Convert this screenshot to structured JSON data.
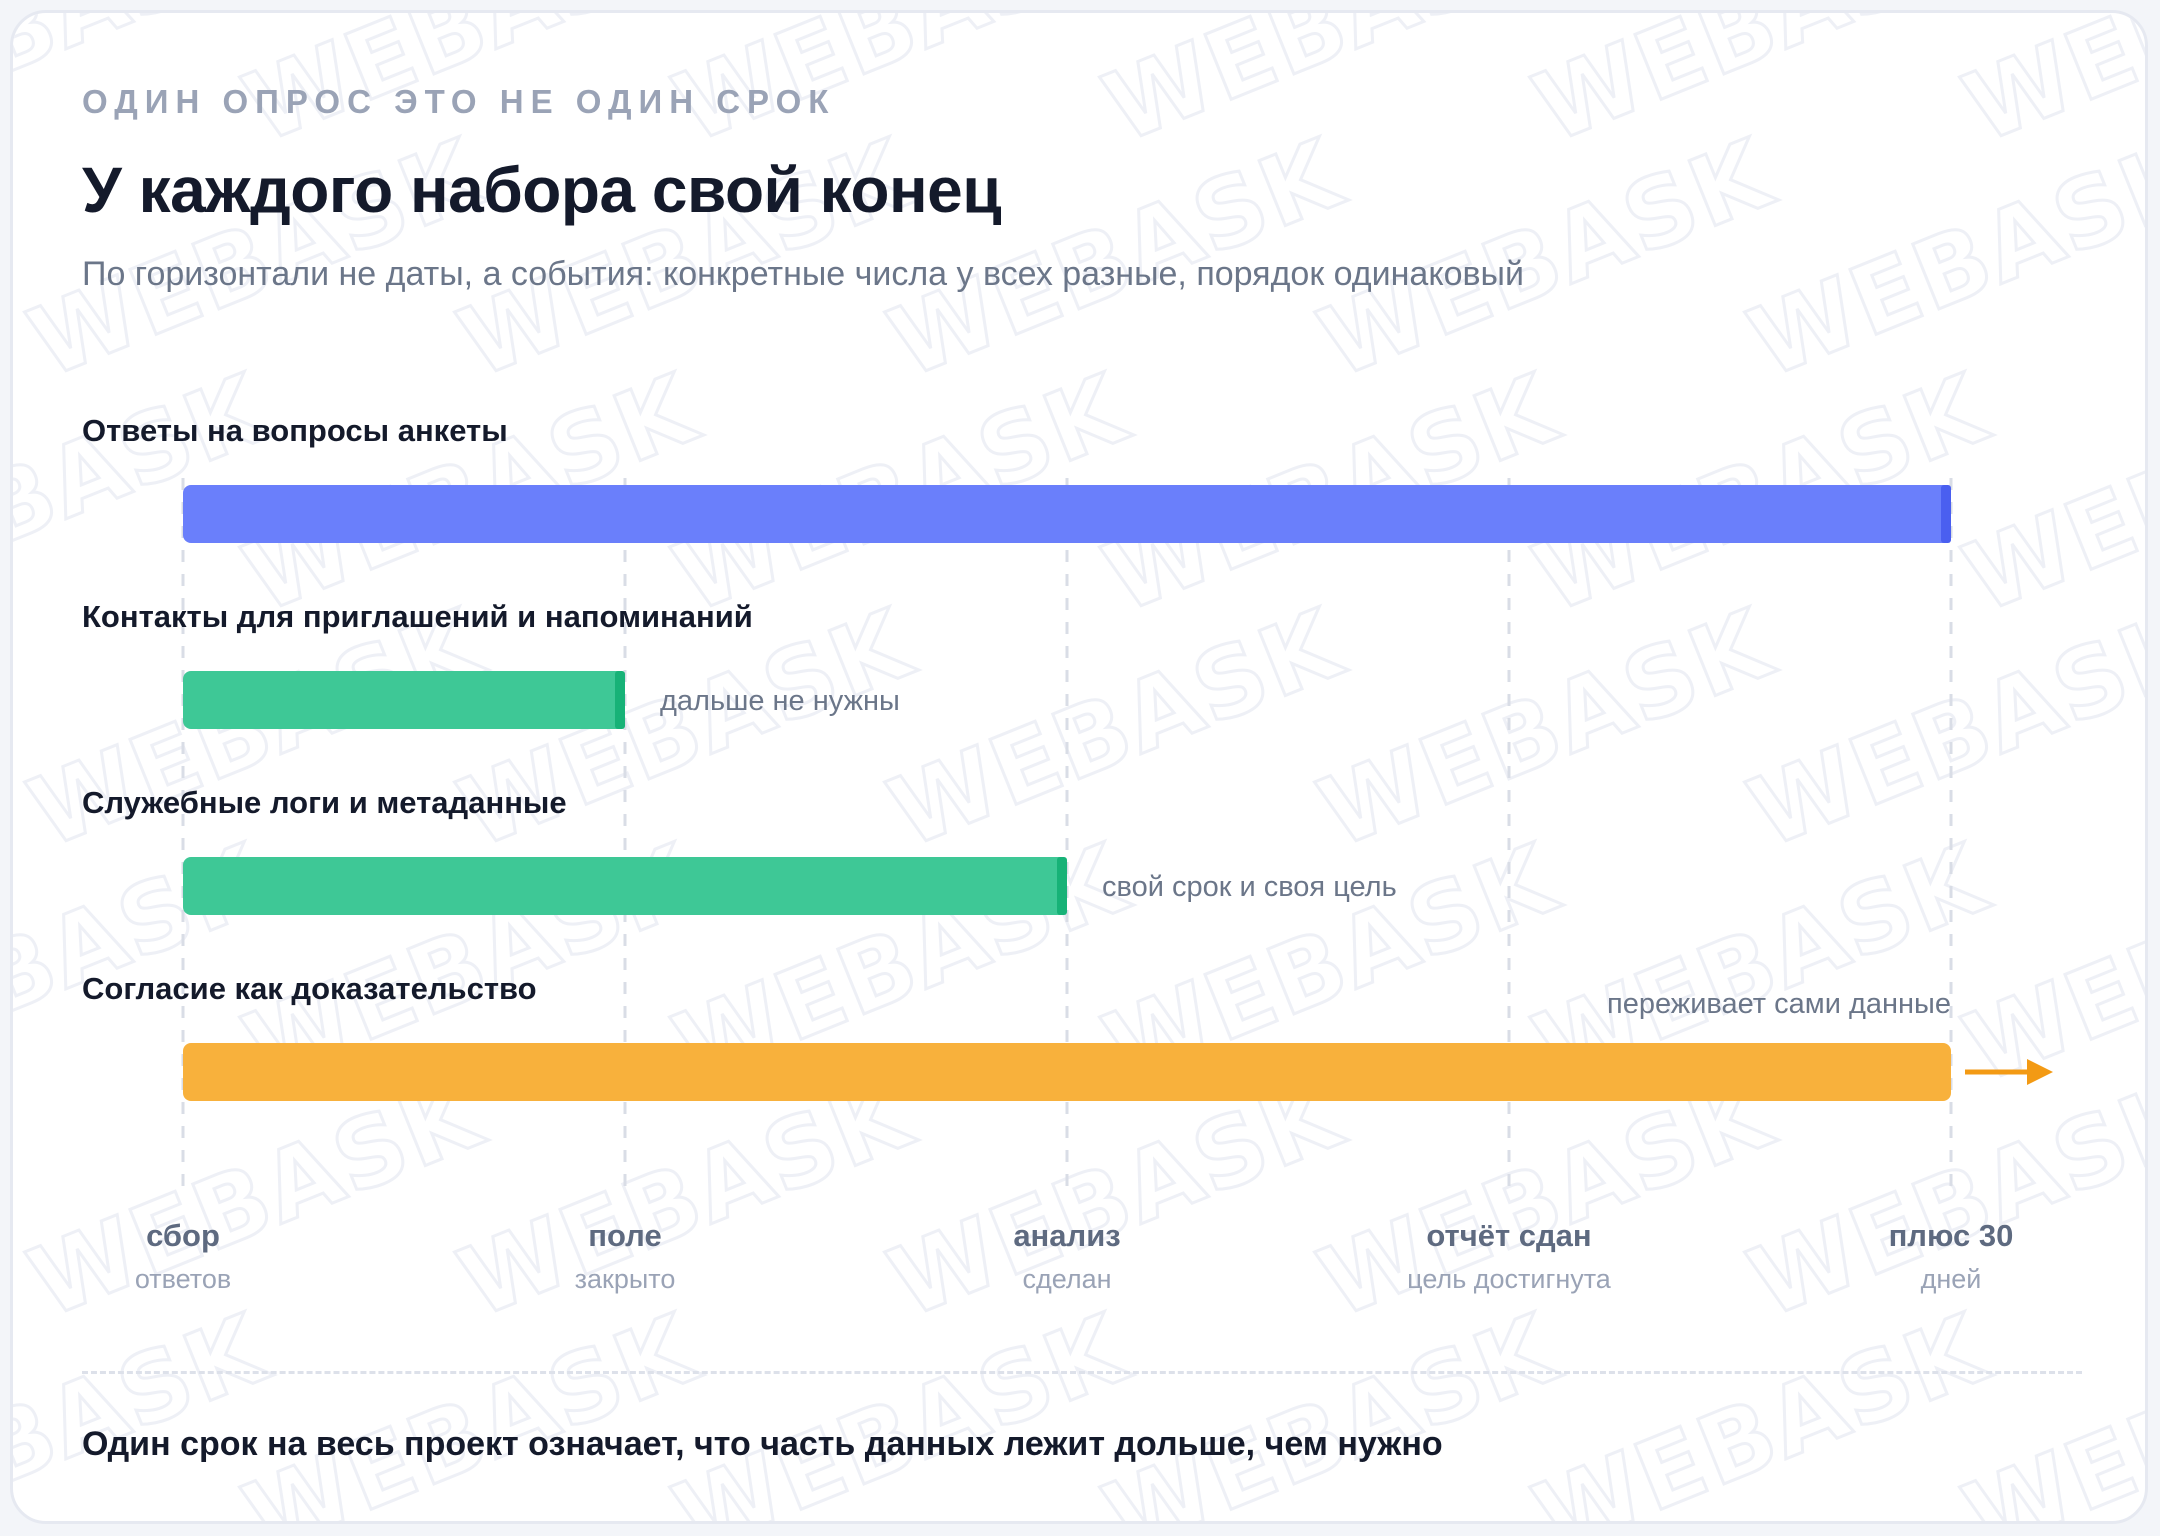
{
  "header": {
    "eyebrow": "ОДИН ОПРОС ЭТО НЕ ОДИН СРОК",
    "title": "У каждого набора свой конец",
    "subtitle": "По горизонтали не даты, а события: конкретные числа у всех разные, порядок одинаковый"
  },
  "watermark": {
    "text": "WEBASK"
  },
  "chart_data": {
    "type": "timeline",
    "x_domain": [
      0,
      4
    ],
    "milestones": [
      {
        "title": "сбор",
        "subtitle": "ответов"
      },
      {
        "title": "поле",
        "subtitle": "закрыто"
      },
      {
        "title": "анализ",
        "subtitle": "сделан"
      },
      {
        "title": "отчёт сдан",
        "subtitle": "цель достигнута"
      },
      {
        "title": "плюс 30",
        "subtitle": "дней"
      }
    ],
    "rows": [
      {
        "label": "Ответы на вопросы анкеты",
        "start": 0,
        "end": 4,
        "color": "#6a7ffb",
        "cap_color": "#4a5ff0",
        "note": "",
        "continues": false
      },
      {
        "label": "Контакты для приглашений и напоминаний",
        "start": 0,
        "end": 1,
        "color": "#3ec896",
        "cap_color": "#17b277",
        "note": "дальше не нужны",
        "continues": false
      },
      {
        "label": "Служебные логи и метаданные",
        "start": 0,
        "end": 2,
        "color": "#3ec896",
        "cap_color": "#17b277",
        "note": "свой срок и своя цель",
        "continues": false
      },
      {
        "label": "Согласие как доказательство",
        "start": 0,
        "end": 4,
        "color": "#f8b13c",
        "cap_color": "#f8b13c",
        "note": "переживает сами данные",
        "continues": true,
        "arrow_color": "#f39a14"
      }
    ]
  },
  "footer": {
    "text": "Один срок на весь проект означает, что часть данных лежит дольше, чем нужно"
  }
}
